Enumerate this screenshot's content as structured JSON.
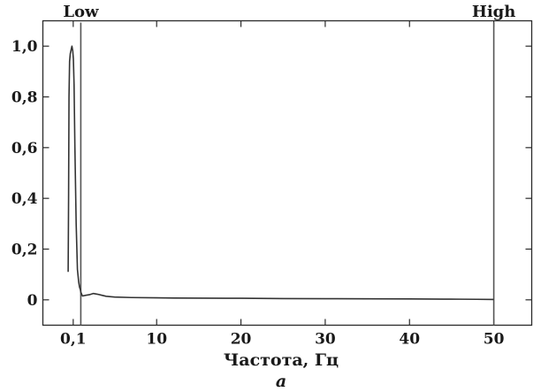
{
  "chart_data": {
    "type": "line",
    "title": "",
    "xlabel": "Частота, Гц",
    "ylabel": "",
    "panel_label": "a",
    "xlim": [
      -3.5,
      54.5
    ],
    "ylim": [
      -0.1,
      1.1
    ],
    "x_ticks": [
      {
        "value": 0.1,
        "label": "0,1"
      },
      {
        "value": 10,
        "label": "10"
      },
      {
        "value": 20,
        "label": "20"
      },
      {
        "value": 30,
        "label": "30"
      },
      {
        "value": 40,
        "label": "40"
      },
      {
        "value": 50,
        "label": "50"
      }
    ],
    "y_ticks": [
      {
        "value": 0,
        "label": "0"
      },
      {
        "value": 0.2,
        "label": "0,2"
      },
      {
        "value": 0.4,
        "label": "0,4"
      },
      {
        "value": 0.6,
        "label": "0,6"
      },
      {
        "value": 0.8,
        "label": "0,8"
      },
      {
        "value": 1.0,
        "label": "1,0"
      }
    ],
    "markers": [
      {
        "label": "Low",
        "x": 1.0
      },
      {
        "label": "High",
        "x": 50
      }
    ],
    "grid": false,
    "legend": "none",
    "series": [
      {
        "color": "#333333",
        "x": [
          -0.5,
          -0.45,
          -0.4,
          -0.33,
          -0.25,
          -0.15,
          -0.05,
          0.05,
          0.12,
          0.2,
          0.3,
          0.45,
          0.6,
          0.75,
          0.85,
          0.95,
          1.0,
          1.2,
          1.6,
          2.0,
          2.5,
          3.0,
          3.5,
          4.0,
          5.0,
          7.0,
          10,
          12,
          15,
          20,
          25,
          30,
          35,
          40,
          42,
          44,
          46,
          48,
          50
        ],
        "y": [
          0.11,
          0.4,
          0.8,
          0.94,
          0.97,
          0.985,
          1.0,
          0.98,
          0.95,
          0.85,
          0.6,
          0.3,
          0.12,
          0.07,
          0.05,
          0.04,
          0.03,
          0.015,
          0.018,
          0.02,
          0.025,
          0.022,
          0.018,
          0.014,
          0.011,
          0.009,
          0.008,
          0.007,
          0.0065,
          0.006,
          0.005,
          0.0045,
          0.004,
          0.0035,
          0.003,
          0.0028,
          0.0025,
          0.002,
          0.0015
        ]
      }
    ]
  }
}
